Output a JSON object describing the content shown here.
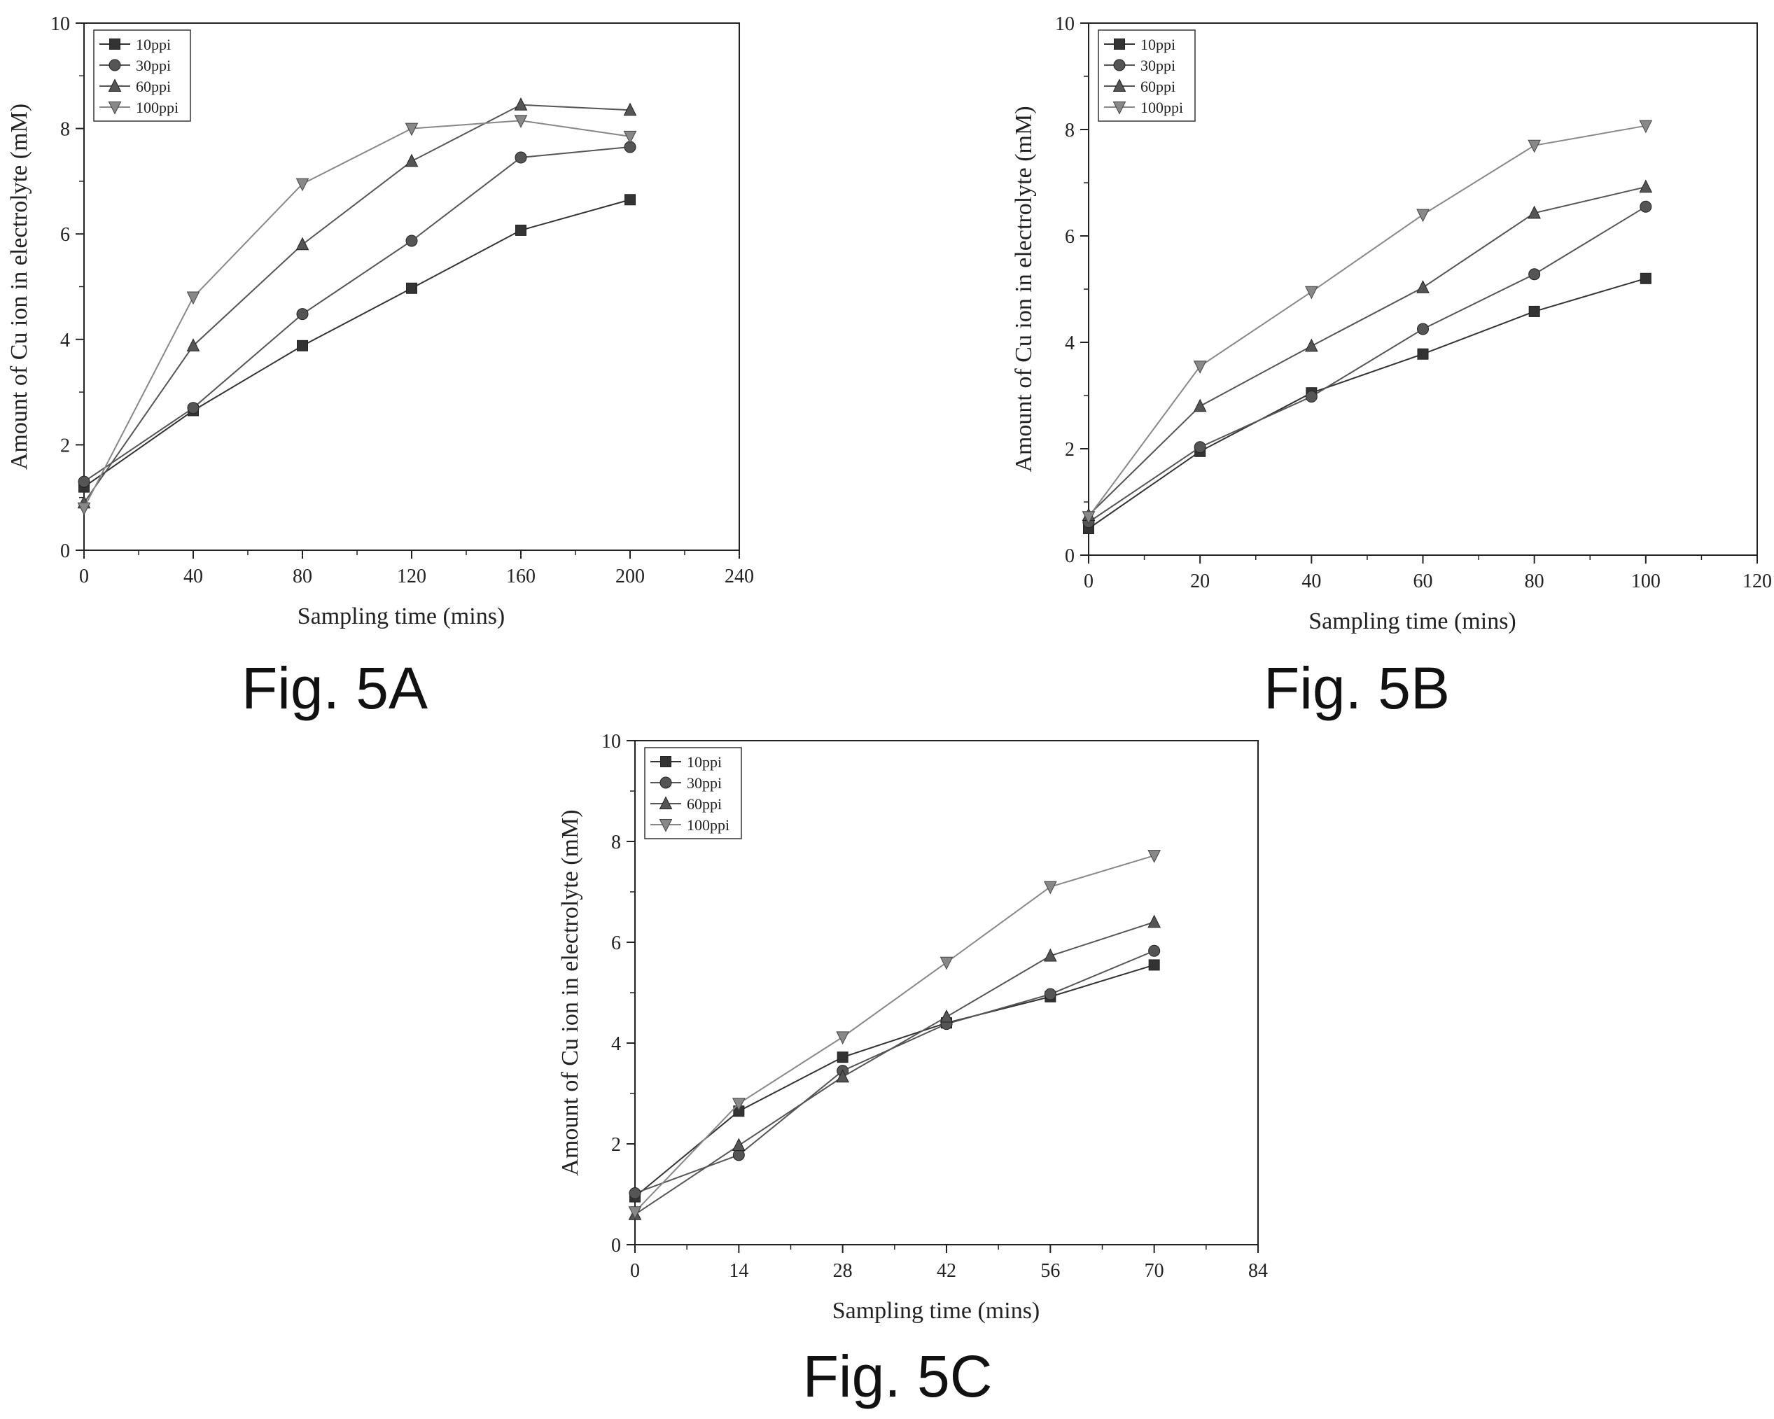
{
  "charts": [
    {
      "caption": "Fig. 5A",
      "chart_data": {
        "type": "line",
        "xlabel": "Sampling time (mins)",
        "ylabel": "Amount of Cu ion in electrolyte (mM)",
        "xlim": [
          0,
          240
        ],
        "ylim": [
          0,
          10
        ],
        "xticks": [
          0,
          40,
          80,
          120,
          160,
          200,
          240
        ],
        "yticks": [
          0,
          2,
          4,
          6,
          8,
          10
        ],
        "legend_position": "top-left",
        "grid": false,
        "series": [
          {
            "name": "10ppi",
            "marker": "square",
            "color": "#333333",
            "x": [
              0,
              40,
              80,
              120,
              160,
              200
            ],
            "y": [
              1.2,
              2.65,
              3.88,
              4.97,
              6.07,
              6.65
            ]
          },
          {
            "name": "30ppi",
            "marker": "circle",
            "color": "#555555",
            "x": [
              0,
              40,
              80,
              120,
              160,
              200
            ],
            "y": [
              1.3,
              2.7,
              4.48,
              5.87,
              7.45,
              7.65
            ]
          },
          {
            "name": "60ppi",
            "marker": "triangle-up",
            "color": "#555555",
            "x": [
              0,
              40,
              80,
              120,
              160,
              200
            ],
            "y": [
              0.9,
              3.88,
              5.8,
              7.38,
              8.45,
              8.35
            ]
          },
          {
            "name": "100ppi",
            "marker": "triangle-down",
            "color": "#888888",
            "x": [
              0,
              40,
              80,
              120,
              160,
              200
            ],
            "y": [
              0.8,
              4.8,
              6.95,
              8.0,
              8.15,
              7.85
            ]
          }
        ]
      }
    },
    {
      "caption": "Fig. 5B",
      "chart_data": {
        "type": "line",
        "xlabel": "Sampling time (mins)",
        "ylabel": "Amount of Cu ion in electrolyte (mM)",
        "xlim": [
          0,
          120
        ],
        "ylim": [
          0,
          10
        ],
        "xticks": [
          0,
          20,
          40,
          60,
          80,
          100,
          120
        ],
        "yticks": [
          0,
          2,
          4,
          6,
          8,
          10
        ],
        "legend_position": "top-left",
        "grid": false,
        "series": [
          {
            "name": "10ppi",
            "marker": "square",
            "color": "#333333",
            "x": [
              0,
              20,
              40,
              60,
              80,
              100
            ],
            "y": [
              0.5,
              1.95,
              3.05,
              3.78,
              4.58,
              5.2
            ]
          },
          {
            "name": "30ppi",
            "marker": "circle",
            "color": "#555555",
            "x": [
              0,
              20,
              40,
              60,
              80,
              100
            ],
            "y": [
              0.62,
              2.03,
              2.98,
              4.25,
              5.28,
              6.55
            ]
          },
          {
            "name": "60ppi",
            "marker": "triangle-up",
            "color": "#555555",
            "x": [
              0,
              20,
              40,
              60,
              80,
              100
            ],
            "y": [
              0.75,
              2.8,
              3.93,
              5.03,
              6.43,
              6.92
            ]
          },
          {
            "name": "100ppi",
            "marker": "triangle-down",
            "color": "#888888",
            "x": [
              0,
              20,
              40,
              60,
              80,
              100
            ],
            "y": [
              0.72,
              3.55,
              4.95,
              6.4,
              7.7,
              8.07
            ]
          }
        ]
      }
    },
    {
      "caption": "Fig. 5C",
      "chart_data": {
        "type": "line",
        "xlabel": "Sampling time (mins)",
        "ylabel": "Amount of Cu ion in electrolyte (mM)",
        "xlim": [
          0,
          84
        ],
        "ylim": [
          0,
          10
        ],
        "xticks": [
          0,
          14,
          28,
          42,
          56,
          70,
          84
        ],
        "yticks": [
          0,
          2,
          4,
          6,
          8,
          10
        ],
        "legend_position": "top-left",
        "grid": false,
        "series": [
          {
            "name": "10ppi",
            "marker": "square",
            "color": "#333333",
            "x": [
              0,
              14,
              28,
              42,
              56,
              70
            ],
            "y": [
              0.95,
              2.65,
              3.72,
              4.4,
              4.92,
              5.55
            ]
          },
          {
            "name": "30ppi",
            "marker": "circle",
            "color": "#555555",
            "x": [
              0,
              14,
              28,
              42,
              56,
              70
            ],
            "y": [
              1.02,
              1.78,
              3.45,
              4.38,
              4.97,
              5.83
            ]
          },
          {
            "name": "60ppi",
            "marker": "triangle-up",
            "color": "#555555",
            "x": [
              0,
              14,
              28,
              42,
              56,
              70
            ],
            "y": [
              0.6,
              1.97,
              3.33,
              4.52,
              5.73,
              6.4
            ]
          },
          {
            "name": "100ppi",
            "marker": "triangle-down",
            "color": "#888888",
            "x": [
              0,
              14,
              28,
              42,
              56,
              70
            ],
            "y": [
              0.65,
              2.8,
              4.12,
              5.6,
              7.1,
              7.72
            ]
          }
        ]
      }
    }
  ]
}
